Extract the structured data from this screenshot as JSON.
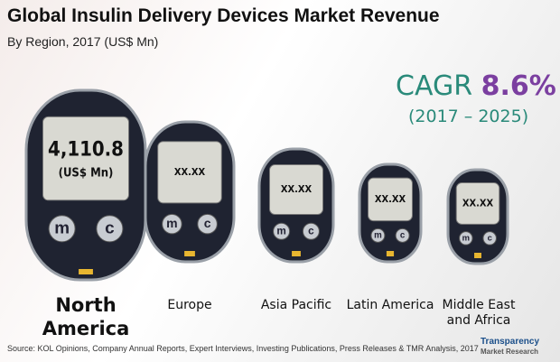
{
  "header": {
    "title": "Global Insulin Delivery Devices Market Revenue",
    "subtitle": "By Region, 2017 (US$ Mn)"
  },
  "cagr": {
    "label": "CAGR",
    "value": "8.6%",
    "period": "(2017 – 2025)"
  },
  "device_buttons": [
    "m",
    "c"
  ],
  "devices": [
    {
      "label": "North America",
      "screen": [
        "4,110.8",
        "(US$ Mn)"
      ]
    },
    {
      "label": "Europe",
      "screen": [
        "XX.XX"
      ]
    },
    {
      "label": "Asia Pacific",
      "screen": [
        "XX.XX"
      ]
    },
    {
      "label": "Latin America",
      "screen": [
        "XX.XX"
      ]
    },
    {
      "label": "Middle East and Africa",
      "screen": [
        "XX.XX"
      ]
    }
  ],
  "footer": {
    "source": "Source: KOL Opinions, Company Annual Reports, Expert Interviews, Investing Publications, Press Releases & TMR Analysis, 2017",
    "logo": [
      "Transparency",
      "Market Research"
    ]
  }
}
